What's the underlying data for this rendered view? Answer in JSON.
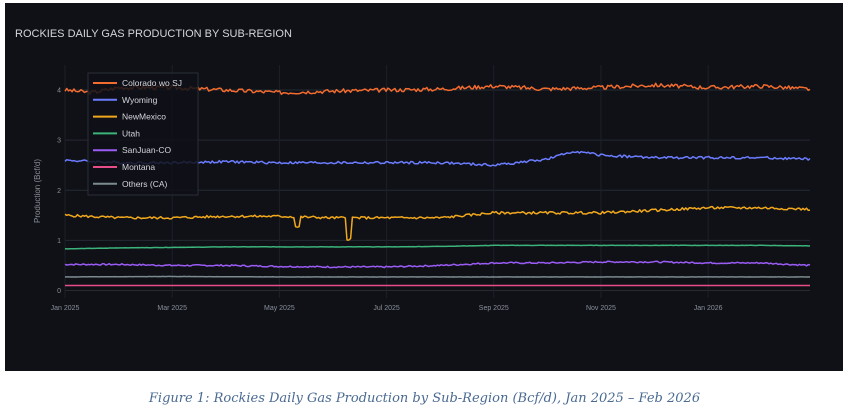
{
  "chart_data": {
    "type": "line",
    "title": "ROCKIES DAILY GAS PRODUCTION BY SUB-REGION",
    "xlabel": "",
    "ylabel": "Production (Bcf/d)",
    "ylim": [
      -0.15,
      4.5
    ],
    "yticks": [
      0,
      1,
      2,
      3,
      4
    ],
    "xrange_months": [
      0,
      13.9
    ],
    "xticks": [
      {
        "label": "Jan 2025",
        "month": 0
      },
      {
        "label": "Mar 2025",
        "month": 2
      },
      {
        "label": "May 2025",
        "month": 4
      },
      {
        "label": "Jul 2025",
        "month": 6
      },
      {
        "label": "Sep 2025",
        "month": 8
      },
      {
        "label": "Nov 2025",
        "month": 10
      },
      {
        "label": "Jan 2026",
        "month": 12
      }
    ],
    "legend_position": "top-left",
    "series": [
      {
        "name": "Colorado wo SJ",
        "color": "#f26b2f",
        "points": [
          [
            0,
            4.0
          ],
          [
            0.5,
            3.95
          ],
          [
            1,
            4.05
          ],
          [
            2,
            4.05
          ],
          [
            3,
            4.0
          ],
          [
            4,
            3.95
          ],
          [
            5,
            3.98
          ],
          [
            6,
            4.0
          ],
          [
            7,
            4.02
          ],
          [
            8,
            4.08
          ],
          [
            9,
            4.02
          ],
          [
            10,
            4.05
          ],
          [
            11,
            4.1
          ],
          [
            12,
            4.05
          ],
          [
            13,
            4.08
          ],
          [
            13.9,
            4.02
          ]
        ]
      },
      {
        "name": "Wyoming",
        "color": "#6b7cff",
        "points": [
          [
            0,
            2.6
          ],
          [
            1,
            2.55
          ],
          [
            2,
            2.55
          ],
          [
            3,
            2.57
          ],
          [
            4,
            2.55
          ],
          [
            5,
            2.55
          ],
          [
            6,
            2.55
          ],
          [
            7,
            2.55
          ],
          [
            8,
            2.5
          ],
          [
            9,
            2.62
          ],
          [
            9.5,
            2.78
          ],
          [
            10,
            2.7
          ],
          [
            11,
            2.65
          ],
          [
            12,
            2.65
          ],
          [
            13,
            2.65
          ],
          [
            13.9,
            2.62
          ]
        ]
      },
      {
        "name": "NewMexico",
        "color": "#f2a81d",
        "points": [
          [
            0,
            1.5
          ],
          [
            1,
            1.45
          ],
          [
            2,
            1.45
          ],
          [
            3,
            1.48
          ],
          [
            4,
            1.48
          ],
          [
            5,
            1.45
          ],
          [
            6,
            1.45
          ],
          [
            7,
            1.45
          ],
          [
            8,
            1.55
          ],
          [
            9,
            1.55
          ],
          [
            10,
            1.55
          ],
          [
            11,
            1.6
          ],
          [
            12,
            1.65
          ],
          [
            13,
            1.65
          ],
          [
            13.9,
            1.62
          ]
        ]
      },
      {
        "name": "Utah",
        "color": "#3bb37a",
        "points": [
          [
            0,
            0.83
          ],
          [
            1,
            0.85
          ],
          [
            2,
            0.86
          ],
          [
            3,
            0.87
          ],
          [
            4,
            0.87
          ],
          [
            5,
            0.87
          ],
          [
            6,
            0.87
          ],
          [
            7,
            0.88
          ],
          [
            8,
            0.9
          ],
          [
            9,
            0.9
          ],
          [
            10,
            0.9
          ],
          [
            11,
            0.9
          ],
          [
            12,
            0.9
          ],
          [
            13,
            0.9
          ],
          [
            13.9,
            0.89
          ]
        ]
      },
      {
        "name": "SanJuan-CO",
        "color": "#9b5cf5",
        "points": [
          [
            0,
            0.52
          ],
          [
            1,
            0.52
          ],
          [
            2,
            0.5
          ],
          [
            3,
            0.5
          ],
          [
            4,
            0.48
          ],
          [
            5,
            0.47
          ],
          [
            6,
            0.47
          ],
          [
            7,
            0.5
          ],
          [
            8,
            0.55
          ],
          [
            9,
            0.55
          ],
          [
            10,
            0.57
          ],
          [
            11,
            0.57
          ],
          [
            12,
            0.55
          ],
          [
            13,
            0.55
          ],
          [
            13.9,
            0.5
          ]
        ]
      },
      {
        "name": "Montana",
        "color": "#e84d8a",
        "points": [
          [
            0,
            0.1
          ],
          [
            2,
            0.1
          ],
          [
            4,
            0.1
          ],
          [
            6,
            0.1
          ],
          [
            8,
            0.1
          ],
          [
            10,
            0.1
          ],
          [
            12,
            0.1
          ],
          [
            13.9,
            0.1
          ]
        ]
      },
      {
        "name": "Others (CA)",
        "color": "#7a8a8f",
        "points": [
          [
            0,
            0.27
          ],
          [
            2,
            0.28
          ],
          [
            4,
            0.27
          ],
          [
            6,
            0.27
          ],
          [
            8,
            0.27
          ],
          [
            10,
            0.27
          ],
          [
            12,
            0.27
          ],
          [
            13.9,
            0.27
          ]
        ]
      }
    ]
  },
  "caption": "Figure 1: Rockies Daily Gas Production by Sub-Region (Bcf/d), Jan 2025 – Feb 2026"
}
